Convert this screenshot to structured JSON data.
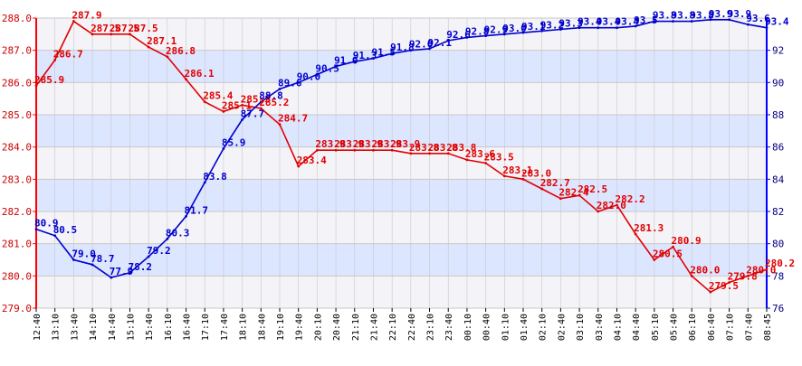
{
  "colors": {
    "background": "#ffffe0",
    "band_blue": "#dde6ff",
    "band_light": "#f4f4f8",
    "frame": "#c8c8c8",
    "left_axis": "#ff0000",
    "right_axis": "#0000ff",
    "series_red": "#e00000",
    "series_blue": "#0000cc"
  },
  "chart_data": {
    "type": "line",
    "title": "",
    "xlabel": "",
    "grid": true,
    "x_tick_labels": [
      "12:40",
      "13:10",
      "13:40",
      "14:10",
      "14:40",
      "15:10",
      "15:40",
      "16:10",
      "16:40",
      "17:10",
      "17:40",
      "18:10",
      "18:40",
      "19:10",
      "19:40",
      "20:10",
      "20:40",
      "21:10",
      "21:40",
      "22:10",
      "22:40",
      "23:10",
      "23:40",
      "00:10",
      "00:40",
      "01:10",
      "01:40",
      "02:10",
      "02:40",
      "03:10",
      "03:40",
      "04:10",
      "04:40",
      "05:10",
      "05:40",
      "06:10",
      "06:40",
      "07:10",
      "07:40",
      "08:45"
    ],
    "y_left": {
      "ylim": [
        279.0,
        288.0
      ],
      "ticks": [
        "279.0",
        "280.0",
        "281.0",
        "282.0",
        "283.0",
        "284.0",
        "285.0",
        "286.0",
        "287.0",
        "288.0"
      ]
    },
    "y_right": {
      "ylim": [
        76,
        94
      ],
      "ticks": [
        "76",
        "78",
        "80",
        "82",
        "84",
        "86",
        "88",
        "90",
        "92"
      ]
    },
    "series": [
      {
        "axis": "left",
        "color": "#e00000",
        "x": [
          "12:40",
          "13:10",
          "13:40",
          "14:10",
          "14:40",
          "15:10",
          "15:40",
          "16:10",
          "16:40",
          "17:10",
          "17:40",
          "18:10",
          "18:40",
          "19:10",
          "19:40",
          "20:10",
          "20:40",
          "21:10",
          "21:40",
          "22:10",
          "22:40",
          "23:10",
          "23:40",
          "00:10",
          "00:40",
          "01:10",
          "01:40",
          "02:10",
          "02:40",
          "03:10",
          "03:40",
          "04:10",
          "04:40",
          "05:10",
          "05:40",
          "06:10",
          "06:40",
          "07:10",
          "07:40",
          "08:45"
        ],
        "values": [
          285.9,
          286.7,
          287.9,
          287.5,
          287.5,
          287.5,
          287.1,
          286.8,
          286.1,
          285.4,
          285.1,
          285.3,
          285.2,
          284.7,
          283.4,
          283.9,
          283.9,
          283.9,
          283.9,
          283.9,
          283.8,
          283.8,
          283.8,
          283.6,
          283.5,
          283.1,
          283.0,
          282.7,
          282.4,
          282.5,
          282.0,
          282.2,
          281.3,
          280.5,
          280.9,
          280.0,
          279.5,
          279.8,
          280.0,
          280.2
        ],
        "labels": [
          "285.9",
          "286.7",
          "287.9",
          "287.5",
          "287.5",
          "287.5",
          "287.1",
          "286.8",
          "286.1",
          "285.4",
          "285.1",
          "285.3",
          "285.2",
          "284.7",
          "283.4",
          "283.9",
          "283.9",
          "283.9",
          "283.9",
          "283.9",
          "283.8",
          "283.8",
          "283.8",
          "283.6",
          "283.5",
          "283.1",
          "283.0",
          "282.7",
          "282.4",
          "282.5",
          "282.0",
          "282.2",
          "281.3",
          "280.5",
          "280.9",
          "280.0",
          "279.5",
          "279.8",
          "280.0",
          "280.2"
        ]
      },
      {
        "axis": "right",
        "color": "#0000cc",
        "x": [
          "12:40",
          "13:10",
          "13:40",
          "14:10",
          "14:40",
          "15:10",
          "15:40",
          "16:10",
          "16:40",
          "17:10",
          "17:40",
          "18:10",
          "18:40",
          "19:10",
          "19:40",
          "20:10",
          "20:40",
          "21:10",
          "21:40",
          "22:10",
          "22:40",
          "23:10",
          "23:40",
          "00:10",
          "00:40",
          "01:10",
          "01:40",
          "02:10",
          "02:40",
          "03:10",
          "03:40",
          "04:10",
          "04:40",
          "05:10",
          "05:40",
          "06:10",
          "06:40",
          "07:10",
          "07:40",
          "08:45"
        ],
        "values": [
          80.9,
          80.5,
          79.0,
          78.7,
          77.9,
          78.2,
          79.2,
          80.3,
          81.7,
          83.8,
          85.9,
          87.7,
          88.8,
          89.6,
          90.0,
          90.5,
          91.0,
          91.3,
          91.5,
          91.8,
          92.0,
          92.1,
          92.6,
          92.8,
          92.9,
          93.0,
          93.1,
          93.2,
          93.3,
          93.4,
          93.4,
          93.4,
          93.5,
          93.8,
          93.8,
          93.8,
          93.9,
          93.9,
          93.6,
          93.4
        ],
        "labels": [
          "80.9",
          "80.5",
          "79.0",
          "78.7",
          "77.9",
          "78.2",
          "79.2",
          "80.3",
          "81.7",
          "83.8",
          "85.9",
          "87.7",
          "88.8",
          "89.6",
          "90.0",
          "90.5",
          "91.0",
          "91.3",
          "91.5",
          "91.8",
          "92.0",
          "92.1",
          "92.6",
          "92.8",
          "92.9",
          "93.0",
          "93.1",
          "93.2",
          "93.3",
          "93.4",
          "93.4",
          "93.4",
          "93.5",
          "93.8",
          "93.8",
          "93.8",
          "93.9",
          "93.9",
          "93.6",
          "93.4"
        ]
      }
    ]
  }
}
